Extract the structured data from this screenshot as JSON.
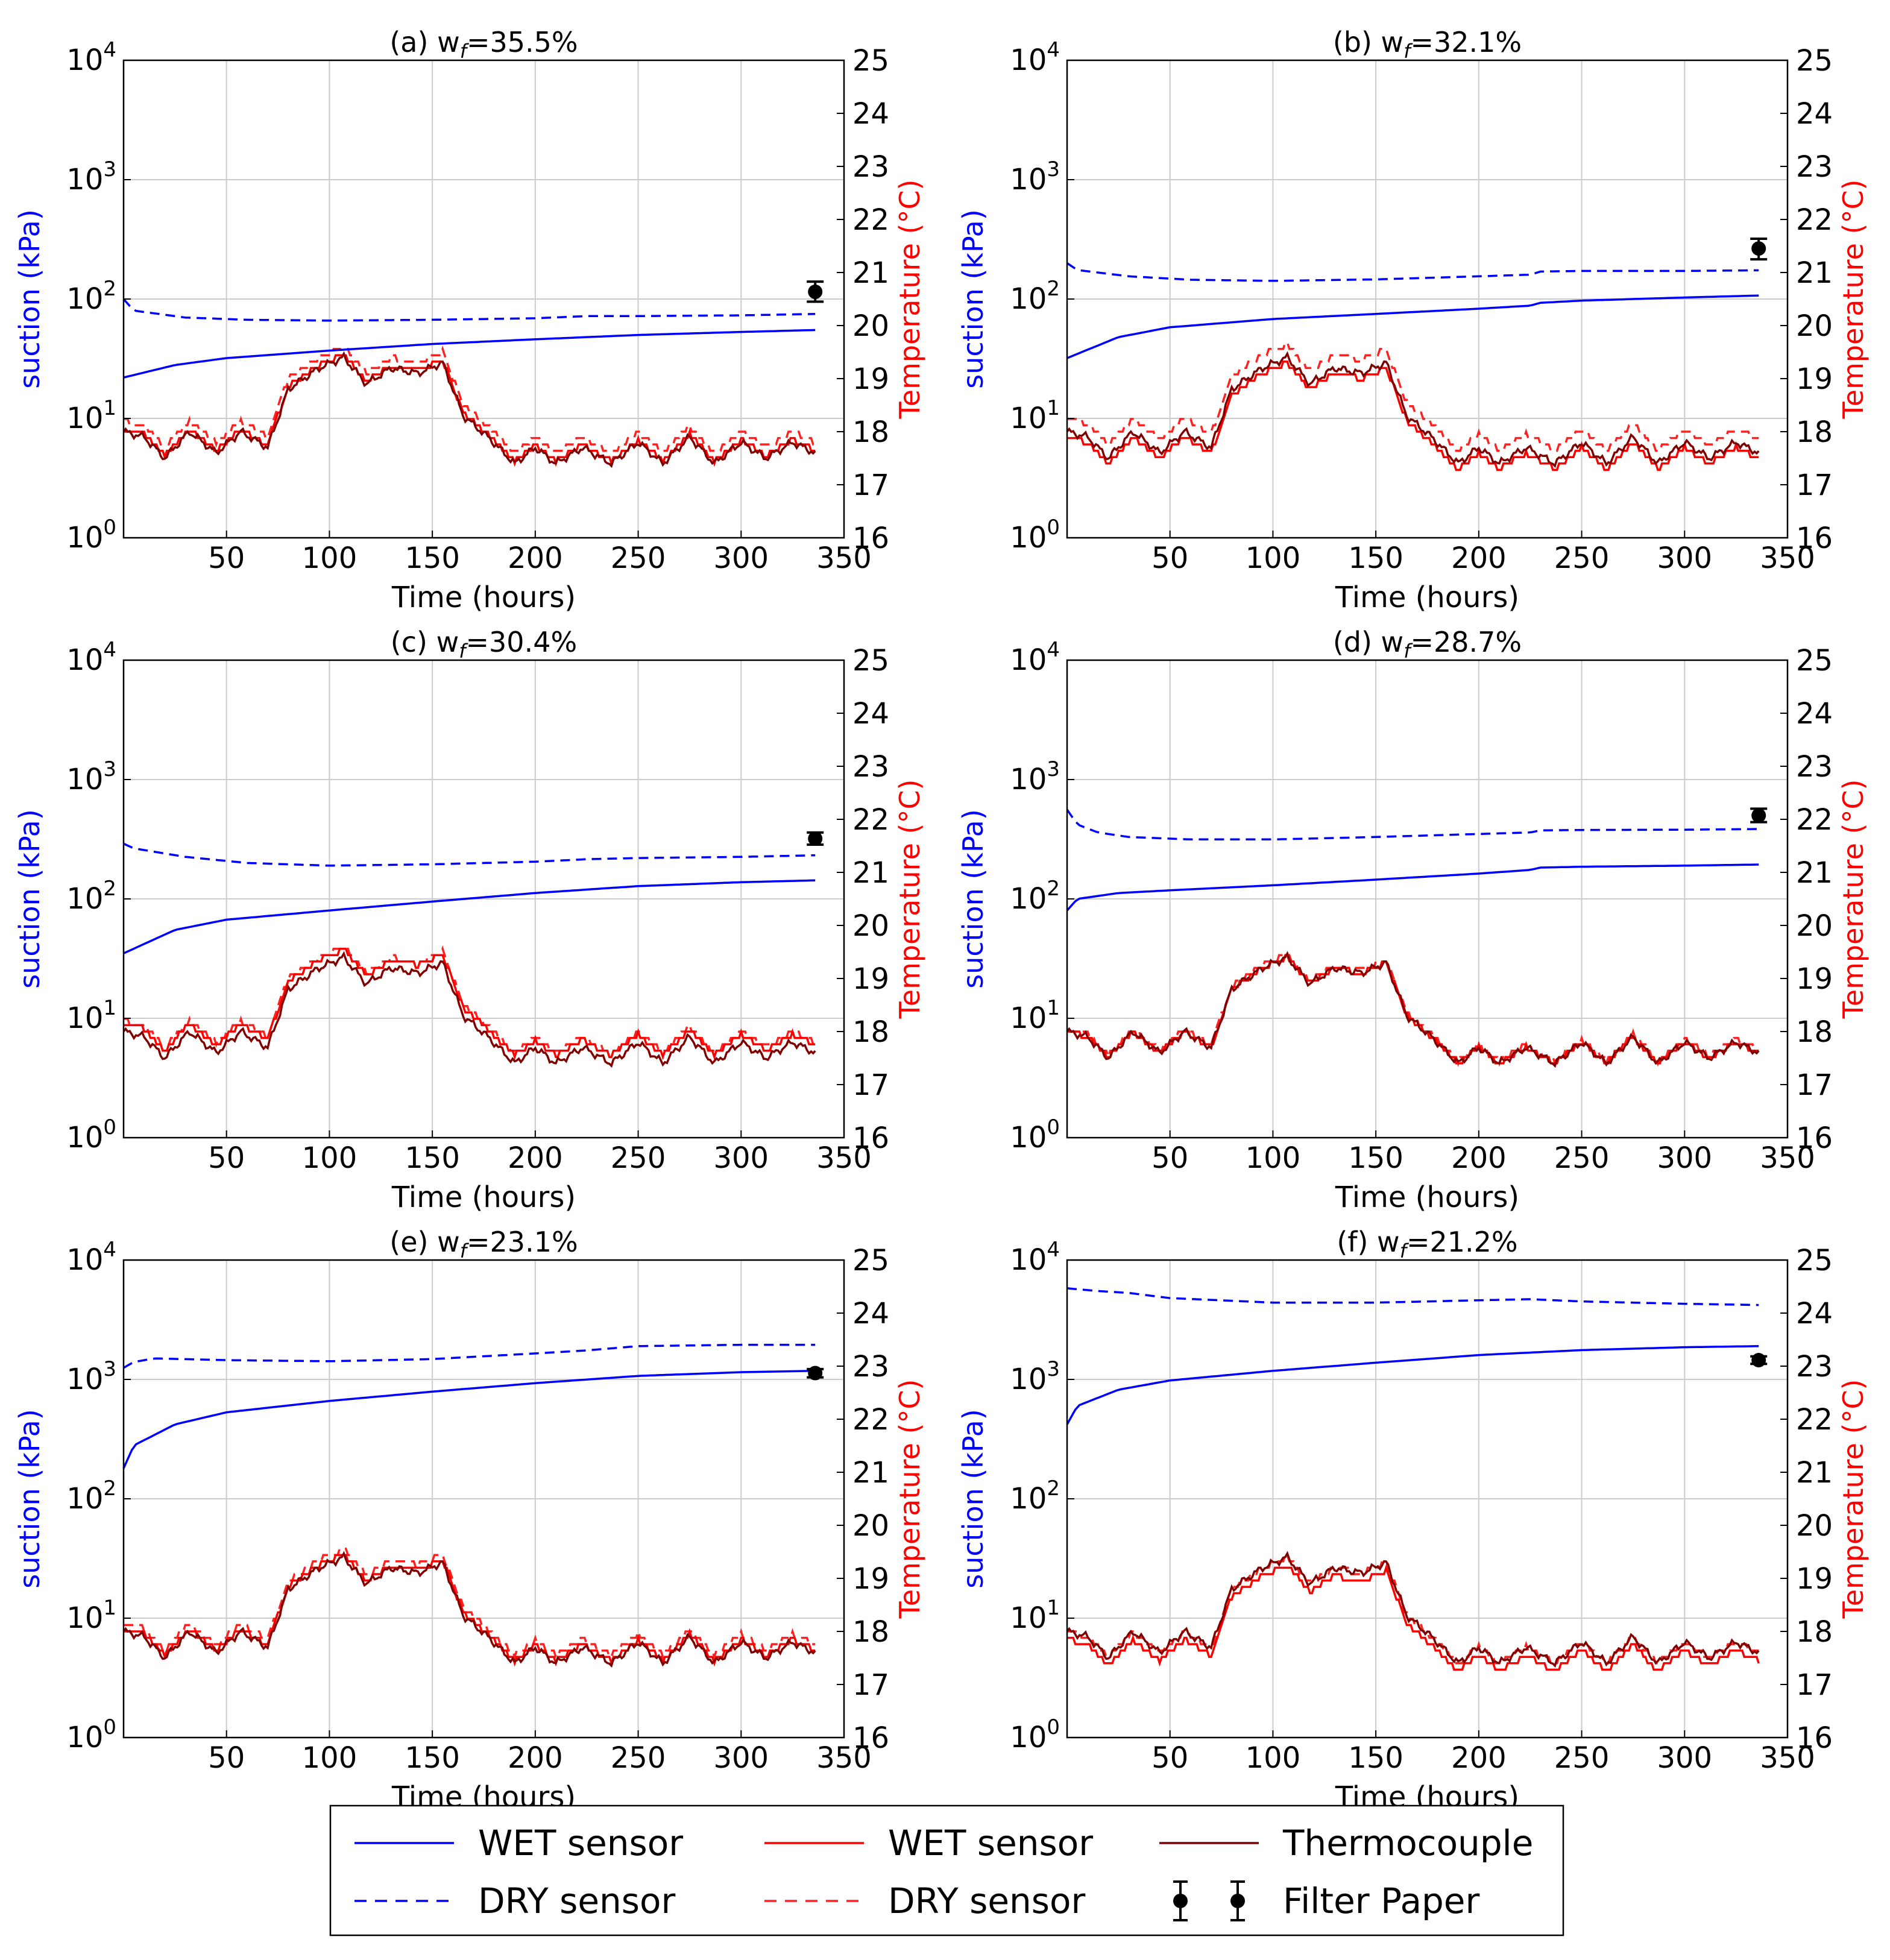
{
  "colors": {
    "suction": "#0000ff",
    "temperature_axis": "#ff0000",
    "wet_temp": "#ff0000",
    "dry_temp": "#ff2020",
    "thermocouple": "#800000",
    "filter_paper": "#000000",
    "grid": "#cccccc"
  },
  "chart_data": {
    "type": "line",
    "shared": {
      "xlabel": "Time (hours)",
      "ylabel_left": "suction (kPa)",
      "ylabel_right": "Temperature (°C)",
      "xlim": [
        0,
        350
      ],
      "xticks": [
        "50",
        "100",
        "150",
        "200",
        "250",
        "300",
        "350"
      ],
      "xtick_values": [
        50,
        100,
        150,
        200,
        250,
        300,
        350
      ],
      "ylim_left_log": [
        1,
        10000
      ],
      "yticks_left": [
        {
          "base": "10",
          "exp": "0",
          "value": 1
        },
        {
          "base": "10",
          "exp": "1",
          "value": 10
        },
        {
          "base": "10",
          "exp": "2",
          "value": 100
        },
        {
          "base": "10",
          "exp": "3",
          "value": 1000
        },
        {
          "base": "10",
          "exp": "4",
          "value": 10000
        }
      ],
      "ylim_right": [
        16,
        25
      ],
      "yticks_right": [
        "16",
        "17",
        "18",
        "19",
        "20",
        "21",
        "22",
        "23",
        "24",
        "25"
      ],
      "ytick_right_values": [
        16,
        17,
        18,
        19,
        20,
        21,
        22,
        23,
        24,
        25
      ],
      "thermocouple_temperature": {
        "x": [
          0,
          10,
          20,
          32,
          45,
          57,
          70,
          80,
          95,
          107,
          118,
          130,
          143,
          155,
          165,
          177,
          190,
          200,
          210,
          223,
          237,
          250,
          262,
          275,
          287,
          300,
          312,
          325,
          336
        ],
        "y": [
          18.0,
          17.9,
          17.5,
          18.0,
          17.6,
          18.0,
          17.7,
          18.8,
          19.2,
          19.4,
          18.9,
          19.2,
          19.1,
          19.3,
          18.3,
          17.9,
          17.4,
          17.7,
          17.4,
          17.7,
          17.4,
          17.8,
          17.4,
          17.9,
          17.4,
          17.8,
          17.5,
          17.8,
          17.6
        ]
      }
    },
    "panels": [
      {
        "title_prefix": "(a) w",
        "title_sub": "f",
        "title_suffix": "=35.5%",
        "wet_suction": {
          "x": [
            0,
            25,
            50,
            100,
            150,
            200,
            250,
            300,
            336
          ],
          "y": [
            22,
            28,
            32,
            37,
            42,
            46,
            50,
            53,
            55
          ]
        },
        "dry_suction": {
          "x": [
            0,
            5,
            30,
            60,
            100,
            150,
            200,
            225,
            250,
            300,
            336
          ],
          "y": [
            100,
            80,
            70,
            67,
            66,
            67,
            69,
            72,
            72,
            73,
            75
          ]
        },
        "wet_temp_offset": 0.05,
        "dry_temp_offset": 0.2,
        "filter_paper": {
          "x": 336,
          "y": 115,
          "err_low": 95,
          "err_high": 140
        }
      },
      {
        "title_prefix": "(b) w",
        "title_sub": "f",
        "title_suffix": "=32.1%",
        "wet_suction": {
          "x": [
            0,
            25,
            50,
            100,
            150,
            200,
            225,
            230,
            250,
            300,
            336
          ],
          "y": [
            32,
            48,
            58,
            68,
            75,
            83,
            88,
            93,
            97,
            103,
            107
          ]
        },
        "dry_suction": {
          "x": [
            0,
            5,
            30,
            60,
            100,
            150,
            200,
            225,
            230,
            250,
            300,
            336
          ],
          "y": [
            200,
            175,
            155,
            145,
            142,
            146,
            155,
            160,
            170,
            172,
            172,
            174
          ]
        },
        "wet_temp_offset": -0.1,
        "dry_temp_offset": 0.25,
        "filter_paper": {
          "x": 336,
          "y": 265,
          "err_low": 215,
          "err_high": 320
        }
      },
      {
        "title_prefix": "(c) w",
        "title_sub": "f",
        "title_suffix": "=30.4%",
        "wet_suction": {
          "x": [
            0,
            25,
            50,
            100,
            150,
            200,
            250,
            300,
            336
          ],
          "y": [
            35,
            55,
            67,
            80,
            95,
            112,
            128,
            138,
            143
          ]
        },
        "dry_suction": {
          "x": [
            0,
            5,
            30,
            60,
            100,
            150,
            200,
            225,
            250,
            300,
            336
          ],
          "y": [
            290,
            265,
            225,
            200,
            190,
            195,
            205,
            215,
            220,
            225,
            232
          ]
        },
        "wet_temp_offset": 0.15,
        "dry_temp_offset": 0.2,
        "filter_paper": {
          "x": 336,
          "y": 320,
          "err_low": 285,
          "err_high": 360
        }
      },
      {
        "title_prefix": "(d) w",
        "title_sub": "f",
        "title_suffix": "=28.7%",
        "wet_suction": {
          "x": [
            0,
            5,
            25,
            50,
            100,
            150,
            200,
            225,
            230,
            250,
            300,
            336
          ],
          "y": [
            80,
            100,
            112,
            118,
            130,
            145,
            163,
            175,
            183,
            186,
            190,
            194
          ]
        },
        "dry_suction": {
          "x": [
            0,
            5,
            15,
            30,
            60,
            100,
            150,
            200,
            225,
            230,
            250,
            300,
            336
          ],
          "y": [
            560,
            420,
            360,
            330,
            315,
            315,
            330,
            350,
            360,
            375,
            378,
            380,
            385
          ]
        },
        "wet_temp_offset": 0.0,
        "dry_temp_offset": 0.05,
        "filter_paper": {
          "x": 336,
          "y": 500,
          "err_low": 440,
          "err_high": 570
        }
      },
      {
        "title_prefix": "(e) w",
        "title_sub": "f",
        "title_suffix": "=23.1%",
        "wet_suction": {
          "x": [
            0,
            5,
            25,
            50,
            100,
            150,
            200,
            250,
            300,
            336
          ],
          "y": [
            180,
            280,
            420,
            530,
            660,
            790,
            930,
            1070,
            1150,
            1180
          ]
        },
        "dry_suction": {
          "x": [
            0,
            5,
            15,
            50,
            100,
            150,
            200,
            225,
            250,
            300,
            336
          ],
          "y": [
            1250,
            1400,
            1500,
            1450,
            1420,
            1480,
            1650,
            1750,
            1900,
            1950,
            1950
          ]
        },
        "wet_temp_offset": 0.05,
        "dry_temp_offset": 0.15,
        "filter_paper": {
          "x": 336,
          "y": 1130,
          "err_low": 1040,
          "err_high": 1220
        }
      },
      {
        "title_prefix": "(f) w",
        "title_sub": "f",
        "title_suffix": "=21.2%",
        "wet_suction": {
          "x": [
            0,
            5,
            25,
            50,
            100,
            150,
            200,
            250,
            300,
            336
          ],
          "y": [
            420,
            600,
            820,
            980,
            1180,
            1380,
            1600,
            1760,
            1860,
            1900
          ]
        },
        "dry_suction": {
          "x": [
            0,
            15,
            30,
            50,
            100,
            150,
            200,
            225,
            250,
            300,
            336
          ],
          "y": [
            5800,
            5500,
            5300,
            4800,
            4400,
            4400,
            4600,
            4700,
            4500,
            4300,
            4200
          ]
        },
        "wet_temp_offset": -0.15,
        "dry_temp_offset": 0.0,
        "filter_paper": {
          "x": 336,
          "y": 1450,
          "err_low": 1350,
          "err_high": 1560
        }
      }
    ],
    "legend": {
      "position": "bottom-center",
      "entries": [
        {
          "label": "WET sensor",
          "style": "solid",
          "color_key": "suction"
        },
        {
          "label": "DRY sensor",
          "style": "dashed",
          "color_key": "suction"
        },
        {
          "label": "WET sensor",
          "style": "solid",
          "color_key": "wet_temp"
        },
        {
          "label": "DRY sensor",
          "style": "dashed",
          "color_key": "dry_temp"
        },
        {
          "label": "Thermocouple",
          "style": "solid",
          "color_key": "thermocouple"
        },
        {
          "label": "Filter Paper",
          "style": "errorbar",
          "color_key": "filter_paper"
        }
      ]
    }
  }
}
